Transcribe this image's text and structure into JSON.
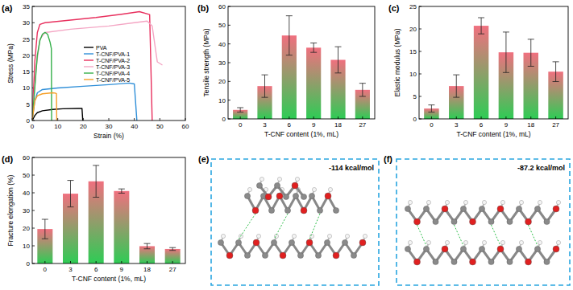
{
  "chart_data": [
    {
      "type": "line",
      "panel_label": "(a)",
      "x_label": "Strain (%)",
      "y_label": "Stress (MPa)",
      "xlim": [
        0,
        60
      ],
      "xticks": [
        0,
        10,
        20,
        30,
        40,
        50,
        60
      ],
      "ylim": [
        0,
        35
      ],
      "yticks": [
        0,
        5,
        10,
        15,
        20,
        25,
        30,
        35
      ],
      "legend": "center",
      "series": [
        {
          "name": "PVA",
          "color": "#000000",
          "x": [
            0,
            1,
            2,
            4,
            8,
            12,
            18,
            19.5,
            19.8
          ],
          "values": [
            0,
            1.5,
            2.4,
            3.0,
            3.4,
            3.6,
            3.7,
            3.7,
            0
          ]
        },
        {
          "name": "T-CNF/PVA-1",
          "color": "#2f8fd8",
          "x": [
            0,
            1,
            2,
            4,
            10,
            20,
            30,
            38,
            40,
            41
          ],
          "values": [
            0,
            6,
            8.5,
            9.5,
            10,
            10.5,
            11,
            11.5,
            11.2,
            0
          ]
        },
        {
          "name": "T-CNF/PVA-2",
          "color": "#e8305e",
          "x": [
            0,
            1,
            2,
            3,
            5,
            15,
            25,
            35,
            42,
            46,
            47
          ],
          "values": [
            0,
            18,
            27,
            29.5,
            30,
            30.8,
            31.6,
            32.6,
            33.4,
            32.5,
            0
          ]
        },
        {
          "name": "T-CNF/PVA-3",
          "color": "#f4a6c4",
          "x": [
            0,
            1.5,
            3,
            5,
            15,
            30,
            40,
            45,
            47,
            49,
            51
          ],
          "values": [
            0,
            16,
            25,
            27,
            28,
            29,
            30,
            30.5,
            29,
            18,
            17
          ]
        },
        {
          "name": "T-CNF/PVA-4",
          "color": "#35b04a",
          "x": [
            0,
            1,
            2,
            3,
            4,
            5,
            6,
            7,
            7.5,
            7.6
          ],
          "values": [
            0,
            10,
            20,
            24.5,
            26.5,
            27,
            26.5,
            24,
            22,
            0
          ]
        },
        {
          "name": "T-CNF/PVA-5",
          "color": "#f5a02a",
          "x": [
            0,
            1,
            2,
            4,
            8,
            9,
            9.5,
            9.6
          ],
          "values": [
            0,
            6,
            7.6,
            8.2,
            8.5,
            8.4,
            8.2,
            0
          ]
        }
      ]
    },
    {
      "type": "bar",
      "panel_label": "(b)",
      "x_label": "T-CNF content (1%, mL)",
      "y_label": "Tensile strength (MPa)",
      "categories": [
        "0",
        "3",
        "6",
        "9",
        "18",
        "27"
      ],
      "ylim": [
        0,
        60
      ],
      "yticks": [
        0,
        10,
        20,
        30,
        40,
        50,
        60
      ],
      "series": [
        {
          "color": "#f0707f",
          "values": [
            4.8,
            17.5,
            44.5,
            38,
            31.5,
            15.5
          ],
          "errors": [
            1.2,
            6,
            10.5,
            2.5,
            7,
            3.5
          ]
        }
      ]
    },
    {
      "type": "bar",
      "panel_label": "(c)",
      "x_label": "T-CNF content (1%, mL)",
      "y_label": "Elastic modulus (MPa)",
      "categories": [
        "0",
        "3",
        "6",
        "9",
        "18",
        "27"
      ],
      "ylim": [
        0,
        25
      ],
      "yticks": [
        0,
        5,
        10,
        15,
        20,
        25
      ],
      "series": [
        {
          "color": "#f0707f",
          "values": [
            2.3,
            7.3,
            20.7,
            14.8,
            14.7,
            10.5
          ],
          "errors": [
            0.8,
            2.5,
            1.8,
            4.5,
            3,
            2.2
          ]
        }
      ]
    },
    {
      "type": "bar",
      "panel_label": "(d)",
      "x_label": "T-CNF content (1%, mL)",
      "y_label": "Fracture elongation (%)",
      "categories": [
        "0",
        "3",
        "6",
        "9",
        "18",
        "27"
      ],
      "ylim": [
        0,
        60
      ],
      "yticks": [
        0,
        10,
        20,
        30,
        40,
        50,
        60
      ],
      "series": [
        {
          "color": "#f0707f",
          "values": [
            19.5,
            39.5,
            46.5,
            41,
            9.8,
            8.2
          ],
          "errors": [
            5.5,
            7.5,
            9,
            1.2,
            1.5,
            0.8
          ]
        }
      ]
    }
  ],
  "structures": [
    {
      "panel_label": "(e)",
      "energy": "-114 kcal/mol"
    },
    {
      "panel_label": "(f)",
      "energy": "-87.2 kcal/mol"
    }
  ]
}
